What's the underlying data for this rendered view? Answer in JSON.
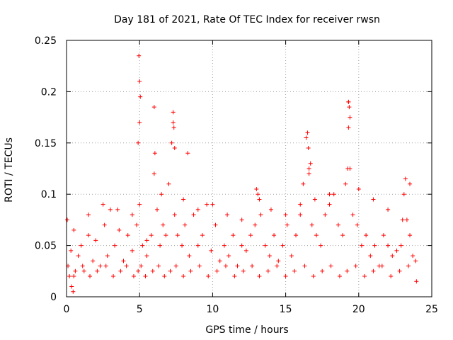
{
  "chart_data": {
    "type": "scatter",
    "title": "Day 181 of 2021, Rate Of TEC Index for receiver rwsn",
    "xlabel": "GPS time / hours",
    "ylabel": "ROTI / TECUs",
    "xlim": [
      0,
      25
    ],
    "ylim": [
      0,
      0.25
    ],
    "x_ticks": [
      0,
      5,
      10,
      15,
      20,
      25
    ],
    "y_ticks": [
      0,
      0.05,
      0.1,
      0.15,
      0.2,
      0.25
    ],
    "x_tick_labels": [
      "0",
      "5",
      "10",
      "15",
      "20",
      "25"
    ],
    "y_tick_labels": [
      "0",
      "0.05",
      "0.1",
      "0.15",
      "0.2",
      "0.25"
    ],
    "grid": true,
    "marker": "+",
    "series": [
      {
        "name": "ROTI",
        "color": "#ff0000",
        "x": [
          0.1,
          0.3,
          0.5,
          0.8,
          1.0,
          1.2,
          1.5,
          1.8,
          2.0,
          2.3,
          2.6,
          2.8,
          3.0,
          3.3,
          3.6,
          3.9,
          4.2,
          4.5,
          4.8,
          5.0,
          5.2,
          5.5,
          5.8,
          6.0,
          6.2,
          6.4,
          6.6,
          6.8,
          7.0,
          7.2,
          7.3,
          7.4,
          7.6,
          7.9,
          8.1,
          8.4,
          8.7,
          9.0,
          9.3,
          9.6,
          9.9,
          10.2,
          10.5,
          10.8,
          11.1,
          11.4,
          11.7,
          12.0,
          12.3,
          12.6,
          12.9,
          13.1,
          13.3,
          13.6,
          13.9,
          14.2,
          14.5,
          14.8,
          15.1,
          15.4,
          15.7,
          16.0,
          16.2,
          16.4,
          16.6,
          16.8,
          17.1,
          17.4,
          17.7,
          18.0,
          18.3,
          18.6,
          18.9,
          19.1,
          19.3,
          19.4,
          19.6,
          19.9,
          20.2,
          20.5,
          20.8,
          21.1,
          21.4,
          21.7,
          22.0,
          22.3,
          22.6,
          22.9,
          23.1,
          23.3,
          23.5,
          23.7,
          23.9,
          0.2,
          0.6,
          1.1,
          1.6,
          2.1,
          2.7,
          3.2,
          3.7,
          4.1,
          4.6,
          4.9,
          5.1,
          5.4,
          5.9,
          6.3,
          6.7,
          7.1,
          7.5,
          8.0,
          8.5,
          9.1,
          9.7,
          10.3,
          10.9,
          11.5,
          12.1,
          12.7,
          13.2,
          13.8,
          14.4,
          15.0,
          15.6,
          16.3,
          16.9,
          17.5,
          18.1,
          18.7,
          19.2,
          19.8,
          20.4,
          21.0,
          21.6,
          22.2,
          22.8,
          23.4,
          4.95,
          5.0,
          5.05,
          4.9,
          5.0,
          6.0,
          6.05,
          7.3,
          7.35,
          7.4,
          16.5,
          16.55,
          16.6,
          19.3,
          19.35,
          19.4,
          19.25,
          19.3,
          13.0,
          13.2,
          0.5,
          1.5,
          2.5,
          3.5,
          4.5,
          6.5,
          8.0,
          9.0,
          10.0,
          11.0,
          12.0,
          14.0,
          15.0,
          16.0,
          17.0,
          18.0,
          20.0,
          21.0,
          22.0,
          23.0,
          0.05,
          23.95,
          0.35,
          0.45,
          5.5,
          8.3,
          16.7,
          23.2,
          23.5
        ],
        "y": [
          0.03,
          0.045,
          0.02,
          0.04,
          0.05,
          0.025,
          0.06,
          0.035,
          0.055,
          0.03,
          0.07,
          0.04,
          0.085,
          0.05,
          0.065,
          0.035,
          0.06,
          0.045,
          0.07,
          0.09,
          0.05,
          0.04,
          0.06,
          0.12,
          0.085,
          0.05,
          0.07,
          0.06,
          0.11,
          0.15,
          0.17,
          0.08,
          0.06,
          0.05,
          0.07,
          0.04,
          0.08,
          0.05,
          0.06,
          0.09,
          0.045,
          0.07,
          0.035,
          0.05,
          0.04,
          0.06,
          0.03,
          0.05,
          0.045,
          0.06,
          0.07,
          0.1,
          0.08,
          0.05,
          0.04,
          0.06,
          0.035,
          0.05,
          0.07,
          0.04,
          0.06,
          0.08,
          0.11,
          0.155,
          0.12,
          0.07,
          0.06,
          0.05,
          0.08,
          0.09,
          0.1,
          0.07,
          0.06,
          0.11,
          0.19,
          0.125,
          0.08,
          0.07,
          0.05,
          0.06,
          0.04,
          0.05,
          0.03,
          0.06,
          0.05,
          0.04,
          0.045,
          0.05,
          0.1,
          0.075,
          0.06,
          0.04,
          0.035,
          0.02,
          0.025,
          0.03,
          0.02,
          0.025,
          0.03,
          0.02,
          0.025,
          0.03,
          0.02,
          0.025,
          0.03,
          0.02,
          0.025,
          0.03,
          0.02,
          0.025,
          0.03,
          0.02,
          0.025,
          0.03,
          0.02,
          0.025,
          0.03,
          0.02,
          0.025,
          0.03,
          0.02,
          0.025,
          0.03,
          0.02,
          0.025,
          0.03,
          0.02,
          0.025,
          0.03,
          0.02,
          0.025,
          0.03,
          0.02,
          0.025,
          0.03,
          0.02,
          0.025,
          0.03,
          0.235,
          0.21,
          0.195,
          0.15,
          0.17,
          0.185,
          0.14,
          0.18,
          0.165,
          0.145,
          0.16,
          0.145,
          0.125,
          0.19,
          0.185,
          0.175,
          0.125,
          0.165,
          0.105,
          0.095,
          0.065,
          0.08,
          0.09,
          0.085,
          0.08,
          0.1,
          0.095,
          0.085,
          0.09,
          0.08,
          0.075,
          0.085,
          0.08,
          0.09,
          0.095,
          0.1,
          0.105,
          0.095,
          0.085,
          0.075,
          0.075,
          0.015,
          0.01,
          0.005,
          0.055,
          0.14,
          0.13,
          0.115,
          0.11
        ]
      }
    ]
  }
}
